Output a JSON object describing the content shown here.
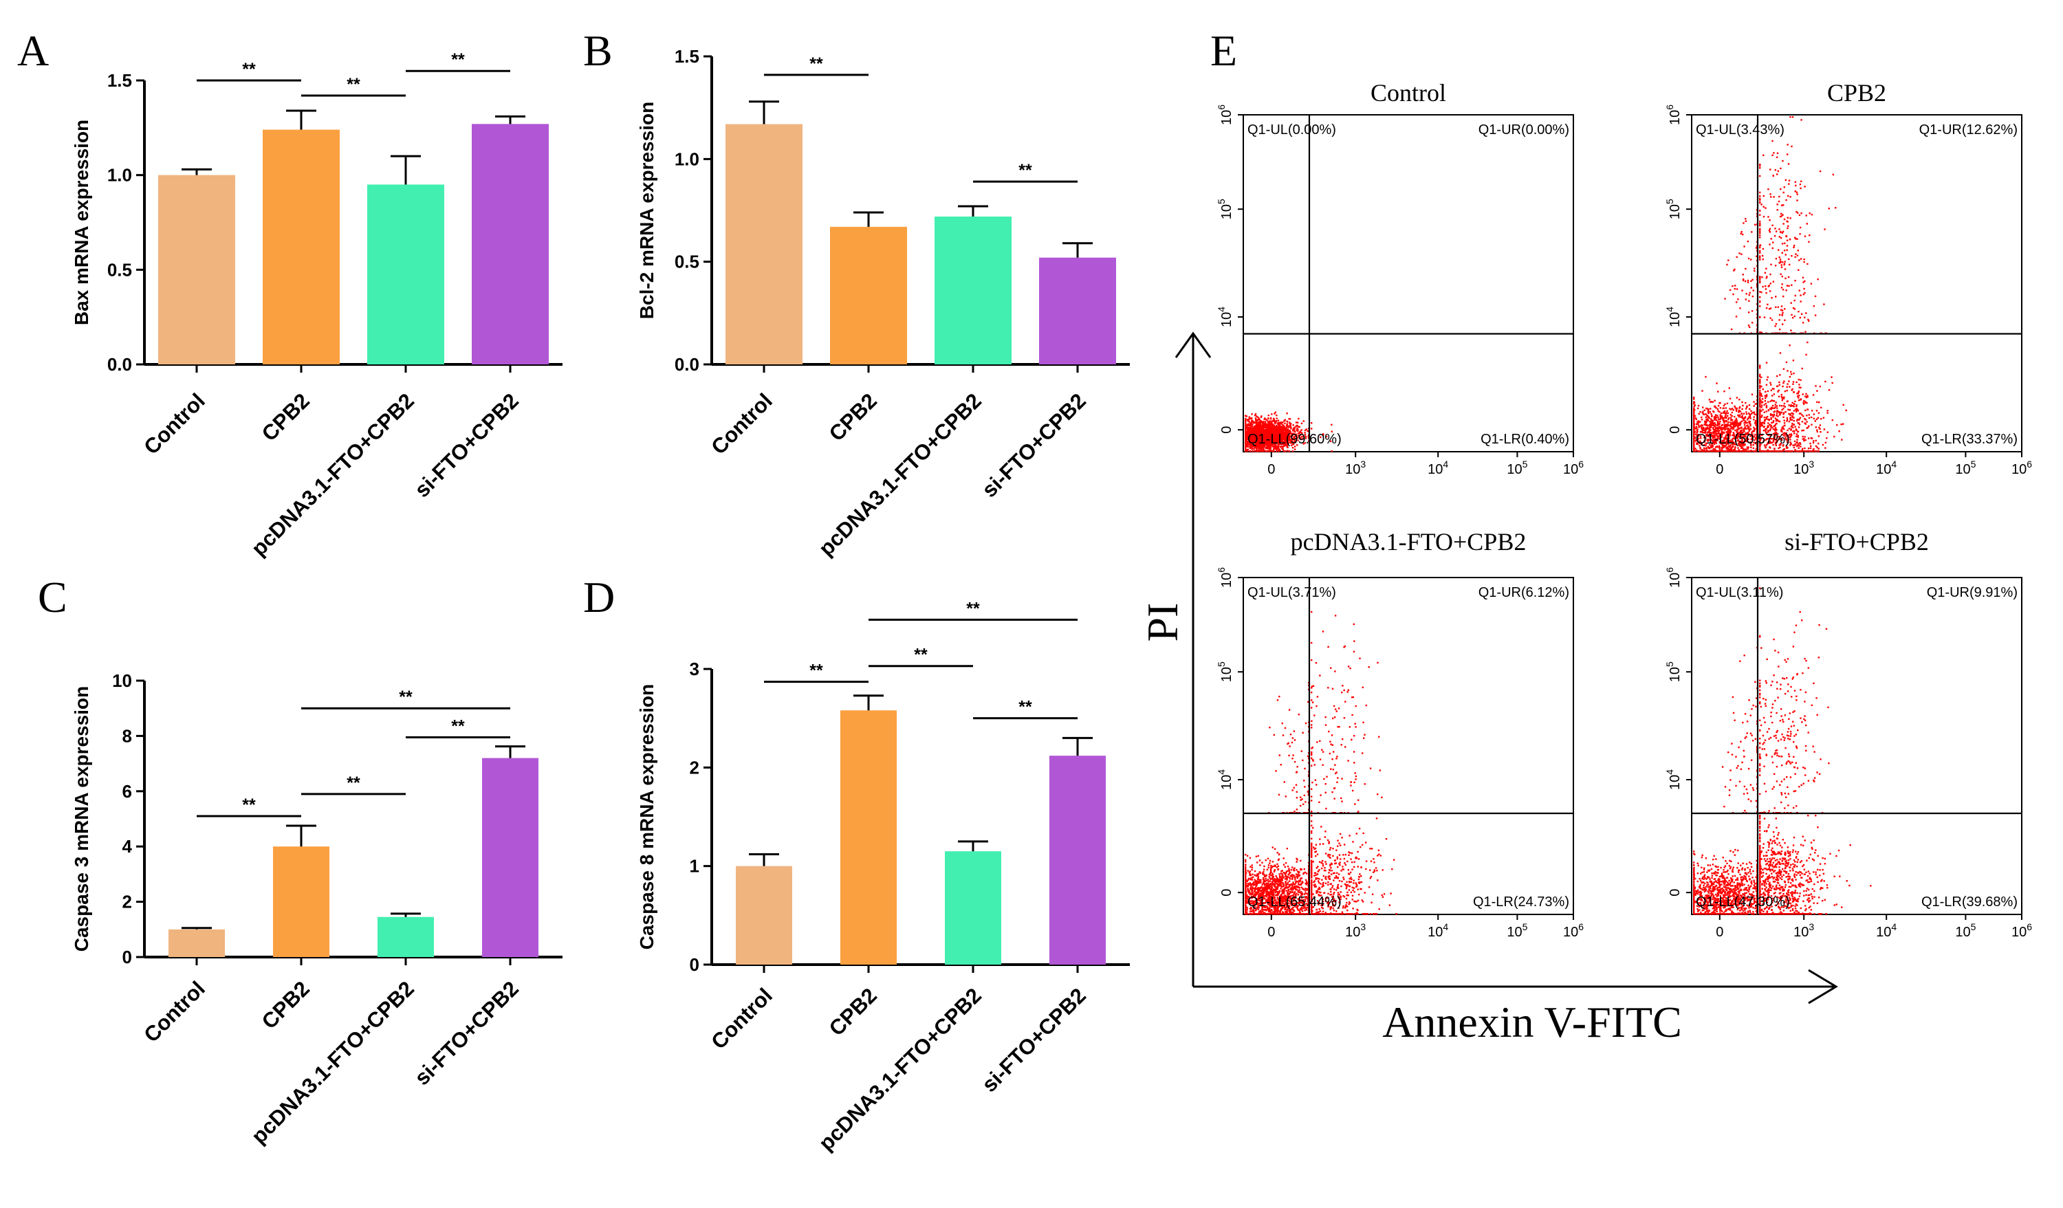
{
  "chart_data": [
    {
      "panel": "A",
      "type": "bar",
      "ylabel": "Bax  mRNA expression",
      "ylim": [
        0,
        1.5
      ],
      "yticks": [
        "0.0",
        "0.5",
        "1.0",
        "1.5"
      ],
      "categories": [
        "Control",
        "CPB2",
        "pcDNA3.1-FTO+CPB2",
        "si-FTO+CPB2"
      ],
      "values": [
        1.0,
        1.24,
        0.95,
        1.27
      ],
      "errors": [
        0.03,
        0.1,
        0.15,
        0.04
      ],
      "colors": [
        "#F0B47F",
        "#FBA040",
        "#42EFB0",
        "#B157D6"
      ],
      "significance": [
        {
          "from": 0,
          "to": 1,
          "y": 1.5,
          "label": "**"
        },
        {
          "from": 1,
          "to": 2,
          "y": 1.42,
          "label": "**"
        },
        {
          "from": 2,
          "to": 3,
          "y": 1.55,
          "label": "**"
        }
      ]
    },
    {
      "panel": "B",
      "type": "bar",
      "ylabel": "Bcl-2  mRNA expression",
      "ylim": [
        0,
        1.5
      ],
      "yticks": [
        "0.0",
        "0.5",
        "1.0",
        "1.5"
      ],
      "categories": [
        "Control",
        "CPB2",
        "pcDNA3.1-FTO+CPB2",
        "si-FTO+CPB2"
      ],
      "values": [
        1.17,
        0.67,
        0.72,
        0.52
      ],
      "errors": [
        0.11,
        0.07,
        0.05,
        0.07
      ],
      "colors": [
        "#F0B47F",
        "#FBA040",
        "#42EFB0",
        "#B157D6"
      ],
      "significance": [
        {
          "from": 0,
          "to": 1,
          "y": 1.41,
          "label": "**"
        },
        {
          "from": 2,
          "to": 3,
          "y": 0.89,
          "label": "**"
        }
      ]
    },
    {
      "panel": "C",
      "type": "bar",
      "ylabel": "Caspase 3  mRNA expression",
      "ylim": [
        0,
        10
      ],
      "yticks": [
        "0",
        "2",
        "4",
        "6",
        "8",
        "10"
      ],
      "categories": [
        "Control",
        "CPB2",
        "pcDNA3.1-FTO+CPB2",
        "si-FTO+CPB2"
      ],
      "values": [
        1.0,
        4.0,
        1.45,
        7.2
      ],
      "errors": [
        0.05,
        0.75,
        0.12,
        0.42
      ],
      "colors": [
        "#F0B47F",
        "#FBA040",
        "#42EFB0",
        "#B157D6"
      ],
      "significance": [
        {
          "from": 0,
          "to": 1,
          "y": 5.1,
          "label": "**"
        },
        {
          "from": 1,
          "to": 2,
          "y": 5.9,
          "label": "**"
        },
        {
          "from": 2,
          "to": 3,
          "y": 7.95,
          "label": "**"
        },
        {
          "from": 1,
          "to": 3,
          "y": 9.0,
          "label": "**"
        }
      ]
    },
    {
      "panel": "D",
      "type": "bar",
      "ylabel": "Caspase 8  mRNA expression",
      "ylim": [
        0,
        3
      ],
      "yticks": [
        "0",
        "1",
        "2",
        "3"
      ],
      "categories": [
        "Control",
        "CPB2",
        "pcDNA3.1-FTO+CPB2",
        "si-FTO+CPB2"
      ],
      "values": [
        1.0,
        2.58,
        1.15,
        2.12
      ],
      "errors": [
        0.12,
        0.15,
        0.1,
        0.18
      ],
      "colors": [
        "#F0B47F",
        "#FBA040",
        "#42EFB0",
        "#B157D6"
      ],
      "significance": [
        {
          "from": 0,
          "to": 1,
          "y": 2.87,
          "label": "**"
        },
        {
          "from": 1,
          "to": 2,
          "y": 3.03,
          "label": "**"
        },
        {
          "from": 2,
          "to": 3,
          "y": 2.5,
          "label": "**"
        },
        {
          "from": 1,
          "to": 3,
          "y": 3.5,
          "label": "**"
        }
      ]
    }
  ],
  "flow_panel": {
    "letter": "E",
    "x_axis_label": "Annexin V-FITC",
    "y_axis_label": "PI",
    "x_ticks": [
      {
        "base": "0",
        "exp": ""
      },
      {
        "base": "10",
        "exp": "3"
      },
      {
        "base": "10",
        "exp": "4"
      },
      {
        "base": "10",
        "exp": "5"
      },
      {
        "base": "10",
        "exp": "6"
      }
    ],
    "y_ticks": [
      {
        "base": "0",
        "exp": ""
      },
      {
        "base": "10",
        "exp": "4"
      },
      {
        "base": "10",
        "exp": "5"
      },
      {
        "base": "10",
        "exp": "6"
      }
    ],
    "plots": [
      {
        "title": "Control",
        "ul": "Q1-UL(0.00%)",
        "ur": "Q1-UR(0.00%)",
        "ll": "Q1-LL(99.60%)",
        "lr": "Q1-LR(0.40%)",
        "ll_pct": 99.6,
        "lr_pct": 0.4,
        "ul_pct": 0.0,
        "ur_pct": 0.0
      },
      {
        "title": "CPB2",
        "ul": "Q1-UL(3.43%)",
        "ur": "Q1-UR(12.62%)",
        "ll": "Q1-LL(50.57%)",
        "lr": "Q1-LR(33.37%)",
        "ll_pct": 50.57,
        "lr_pct": 33.37,
        "ul_pct": 3.43,
        "ur_pct": 12.62
      },
      {
        "title": "pcDNA3.1-FTO+CPB2",
        "ul": "Q1-UL(3.71%)",
        "ur": "Q1-UR(6.12%)",
        "ll": "Q1-LL(65.44%)",
        "lr": "Q1-LR(24.73%)",
        "ll_pct": 65.44,
        "lr_pct": 24.73,
        "ul_pct": 3.71,
        "ur_pct": 6.12
      },
      {
        "title": "si-FTO+CPB2",
        "ul": "Q1-UL(3.11%)",
        "ur": "Q1-UR(9.91%)",
        "ll": "Q1-LL(47.30%)",
        "lr": "Q1-LR(39.68%)",
        "ll_pct": 47.3,
        "lr_pct": 39.68,
        "ul_pct": 3.11,
        "ur_pct": 9.91
      }
    ]
  }
}
